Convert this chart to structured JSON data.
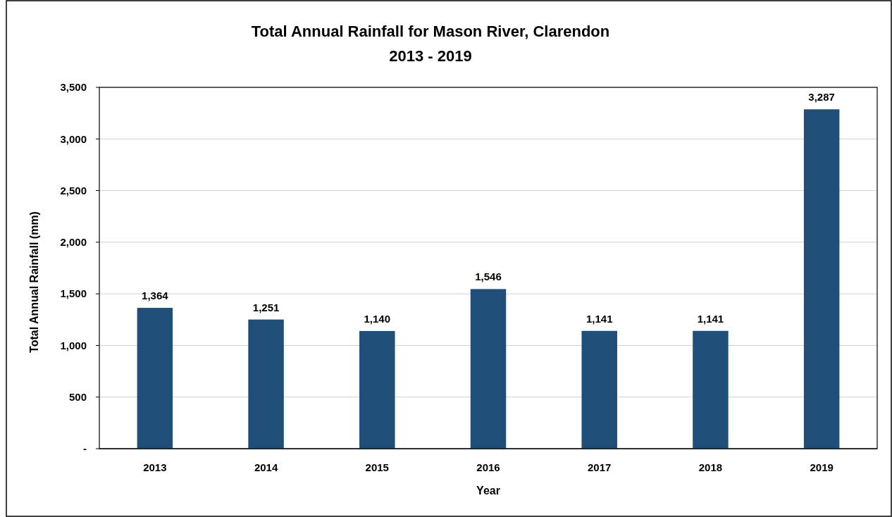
{
  "chart_data": {
    "type": "bar",
    "title": "Total Annual Rainfall for Mason River, Clarendon",
    "subtitle": "2013 - 2019",
    "xlabel": "Year",
    "ylabel": "Total Annual Rainfall (mm)",
    "categories": [
      "2013",
      "2014",
      "2015",
      "2016",
      "2017",
      "2018",
      "2019"
    ],
    "values": [
      1364,
      1251,
      1140,
      1546,
      1141,
      1141,
      3287
    ],
    "value_labels": [
      "1,364",
      "1,251",
      "1,140",
      "1,546",
      "1,141",
      "1,141",
      "3,287"
    ],
    "color": "#1f4e79",
    "ylim": [
      0,
      3500
    ],
    "yticks": [
      {
        "value": 0,
        "label": "-"
      },
      {
        "value": 500,
        "label": "500"
      },
      {
        "value": 1000,
        "label": "1,000"
      },
      {
        "value": 1500,
        "label": "1,500"
      },
      {
        "value": 2000,
        "label": "2,000"
      },
      {
        "value": 2500,
        "label": "2,500"
      },
      {
        "value": 3000,
        "label": "3,000"
      },
      {
        "value": 3500,
        "label": "3,500"
      }
    ],
    "grid": "y"
  }
}
